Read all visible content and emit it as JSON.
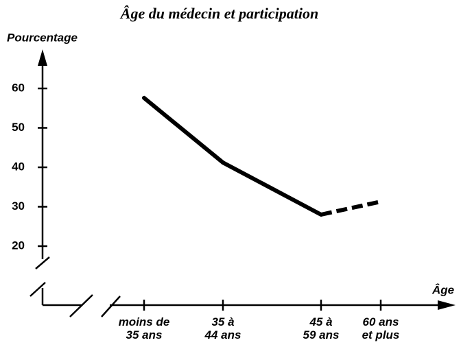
{
  "chart_data": {
    "type": "line",
    "title": "Âge du médecin et participation",
    "y_label": "Pourcentage",
    "x_label": "Âge",
    "categories": [
      "moins de\n35 ans",
      "35 à\n44 ans",
      "45 à\n59 ans",
      "60 ans\net plus"
    ],
    "series": [
      {
        "color": "#000000",
        "values": [
          57.6,
          41.2,
          28,
          31.3
        ]
      }
    ],
    "segment_styles": [
      "solid",
      "solid",
      "dashed"
    ],
    "ylim": [
      15,
      68
    ],
    "yticks": [
      20,
      30,
      40,
      50,
      60
    ]
  }
}
